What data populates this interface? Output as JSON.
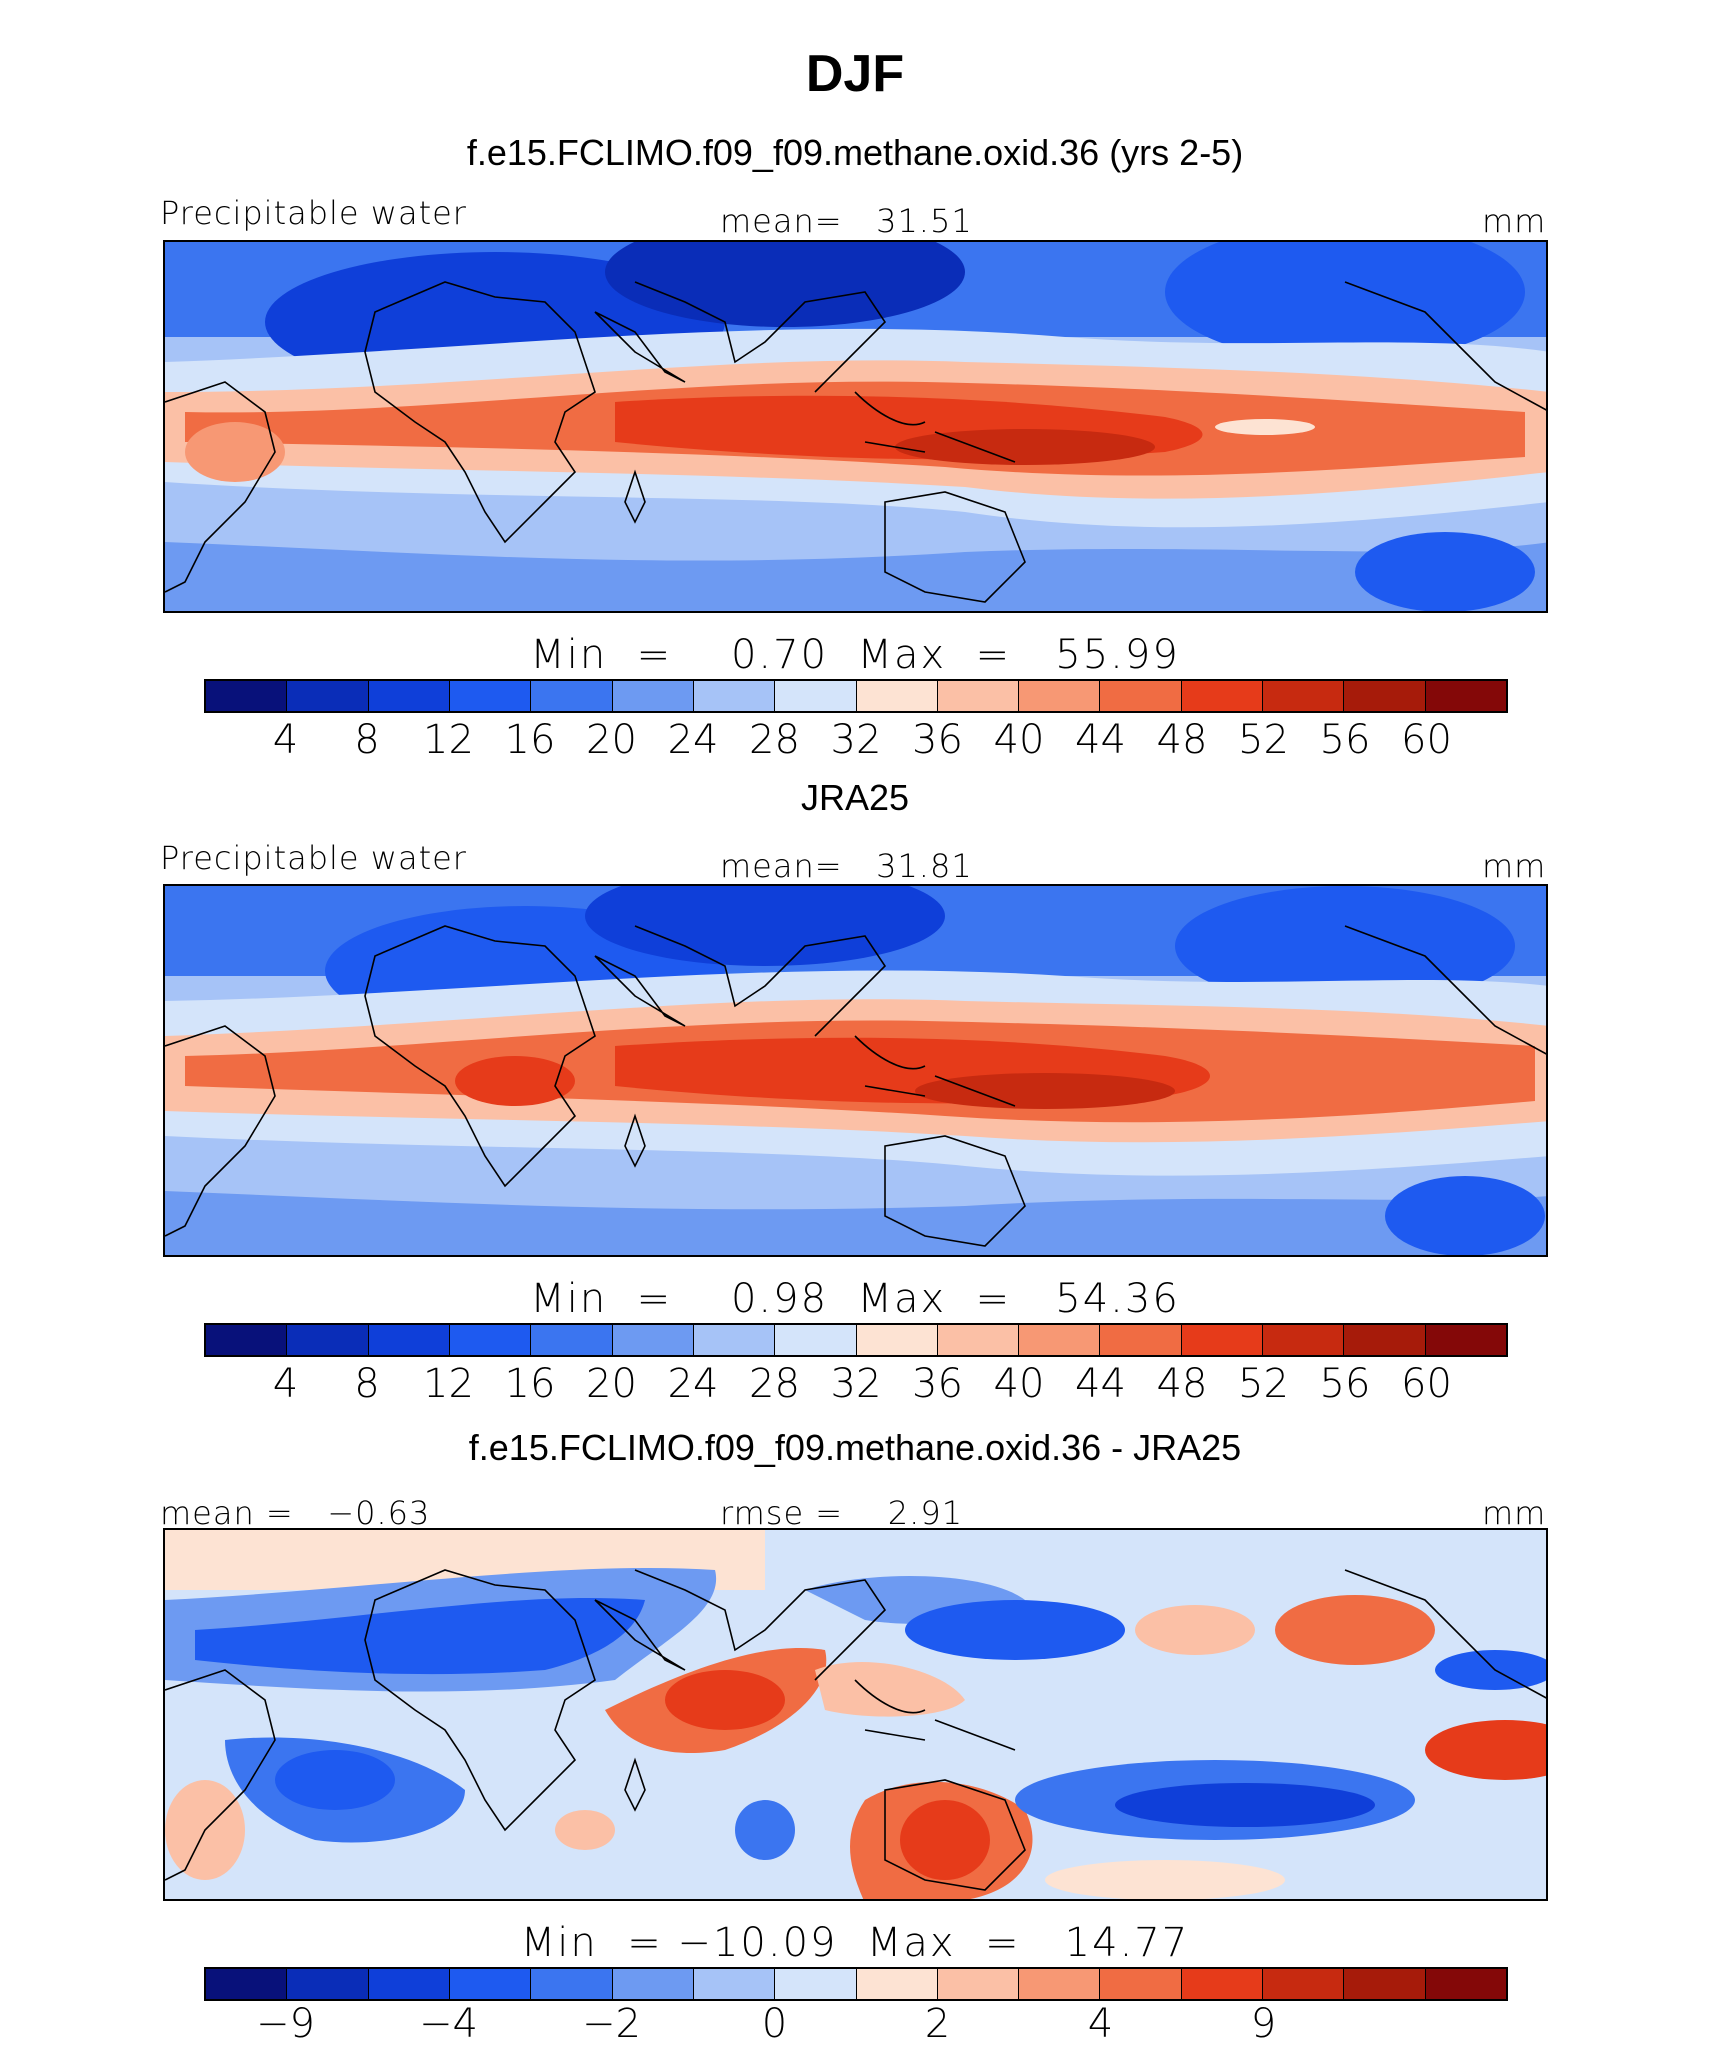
{
  "title": "DJF",
  "palette": [
    "#08117a",
    "#0a2db8",
    "#0f3fd9",
    "#1e5af0",
    "#3b75f0",
    "#6d9af2",
    "#a6c3f7",
    "#d4e4fa",
    "#fde3d3",
    "#fbc0a6",
    "#f79874",
    "#f06c43",
    "#e63b1a",
    "#c72a10",
    "#a61b0a",
    "#840808"
  ],
  "panels": [
    {
      "title": "f.e15.FCLIMO.f09_f09.methane.oxid.36 (yrs 2-5)",
      "left_label": "Precipitable water",
      "center_label": "mean=   31.51",
      "right_label": "mm",
      "minmax": "Min  =    0.70  Max  =   55.99",
      "colorbar_ticks": [
        "4",
        "8",
        "12",
        "16",
        "20",
        "24",
        "28",
        "32",
        "36",
        "40",
        "44",
        "48",
        "52",
        "56",
        "60"
      ]
    },
    {
      "title": "JRA25",
      "left_label": "Precipitable water",
      "center_label": "mean=   31.81",
      "right_label": "mm",
      "minmax": "Min  =    0.98  Max  =   54.36",
      "colorbar_ticks": [
        "4",
        "8",
        "12",
        "16",
        "20",
        "24",
        "28",
        "32",
        "36",
        "40",
        "44",
        "48",
        "52",
        "56",
        "60"
      ]
    },
    {
      "title": "f.e15.FCLIMO.f09_f09.methane.oxid.36 - JRA25",
      "left_label": "mean =   −0.63",
      "center_label": "rmse =    2.91",
      "right_label": "mm",
      "minmax": "Min  = −10.09  Max  =   14.77",
      "colorbar_ticks": [
        "−9",
        "−4",
        "−2",
        "0",
        "2",
        "4",
        "9"
      ]
    }
  ]
}
